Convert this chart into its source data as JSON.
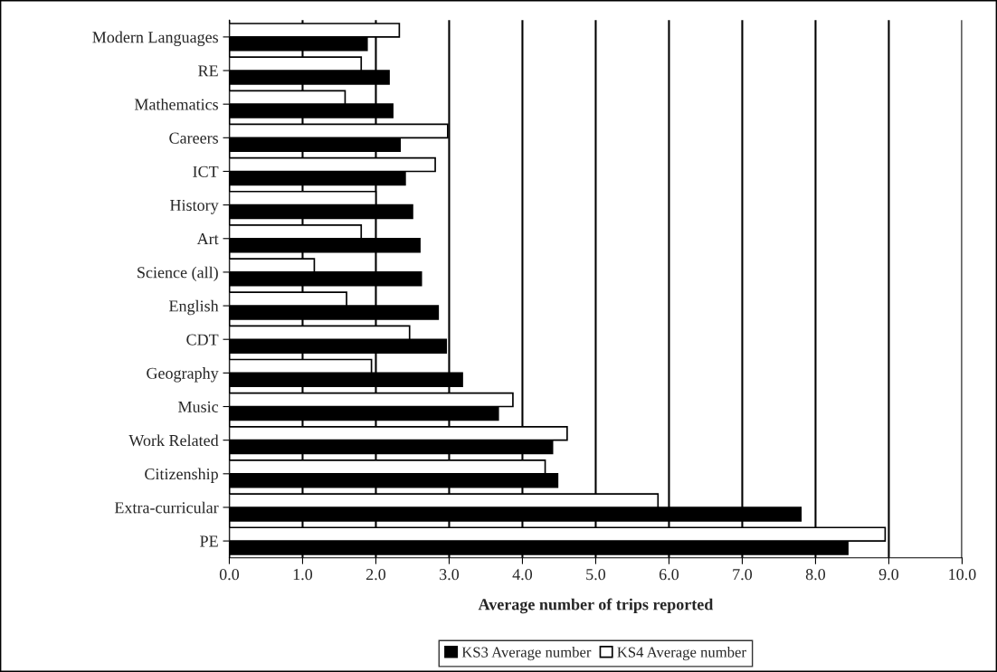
{
  "chart_data": {
    "type": "bar",
    "orientation": "horizontal",
    "xlabel": "Average number of trips reported",
    "categories": [
      "Modern Languages",
      "RE",
      "Mathematics",
      "Careers",
      "ICT",
      "History",
      "Art",
      "Science (all)",
      "English",
      "CDT",
      "Geography",
      "Music",
      "Work Related",
      "Citizenship",
      "Extra-curricular",
      "PE"
    ],
    "series": [
      {
        "name": "KS3 Average number",
        "color": "#000000",
        "values": [
          1.88,
          2.18,
          2.23,
          2.33,
          2.4,
          2.5,
          2.6,
          2.62,
          2.85,
          2.96,
          3.18,
          3.67,
          4.41,
          4.48,
          7.8,
          8.44
        ]
      },
      {
        "name": "KS4 Average number",
        "color": "#ffffff",
        "values": [
          2.32,
          1.8,
          1.58,
          2.98,
          2.81,
          2.0,
          1.8,
          1.16,
          1.6,
          2.46,
          1.94,
          3.87,
          4.61,
          4.31,
          5.85,
          8.95
        ]
      }
    ],
    "xlim": [
      0,
      10
    ],
    "xticks": [
      {
        "value": 0,
        "label": "0.0"
      },
      {
        "value": 1,
        "label": "1.0"
      },
      {
        "value": 2,
        "label": "2.0"
      },
      {
        "value": 3,
        "label": "3.0"
      },
      {
        "value": 4,
        "label": "4.0"
      },
      {
        "value": 5,
        "label": "5.0"
      },
      {
        "value": 6,
        "label": "6.0"
      },
      {
        "value": 7,
        "label": "7.0"
      },
      {
        "value": 8,
        "label": "8.0"
      },
      {
        "value": 9,
        "label": "9.0"
      },
      {
        "value": 10,
        "label": "10.0"
      }
    ],
    "grid": "x",
    "legend": "bottom"
  }
}
